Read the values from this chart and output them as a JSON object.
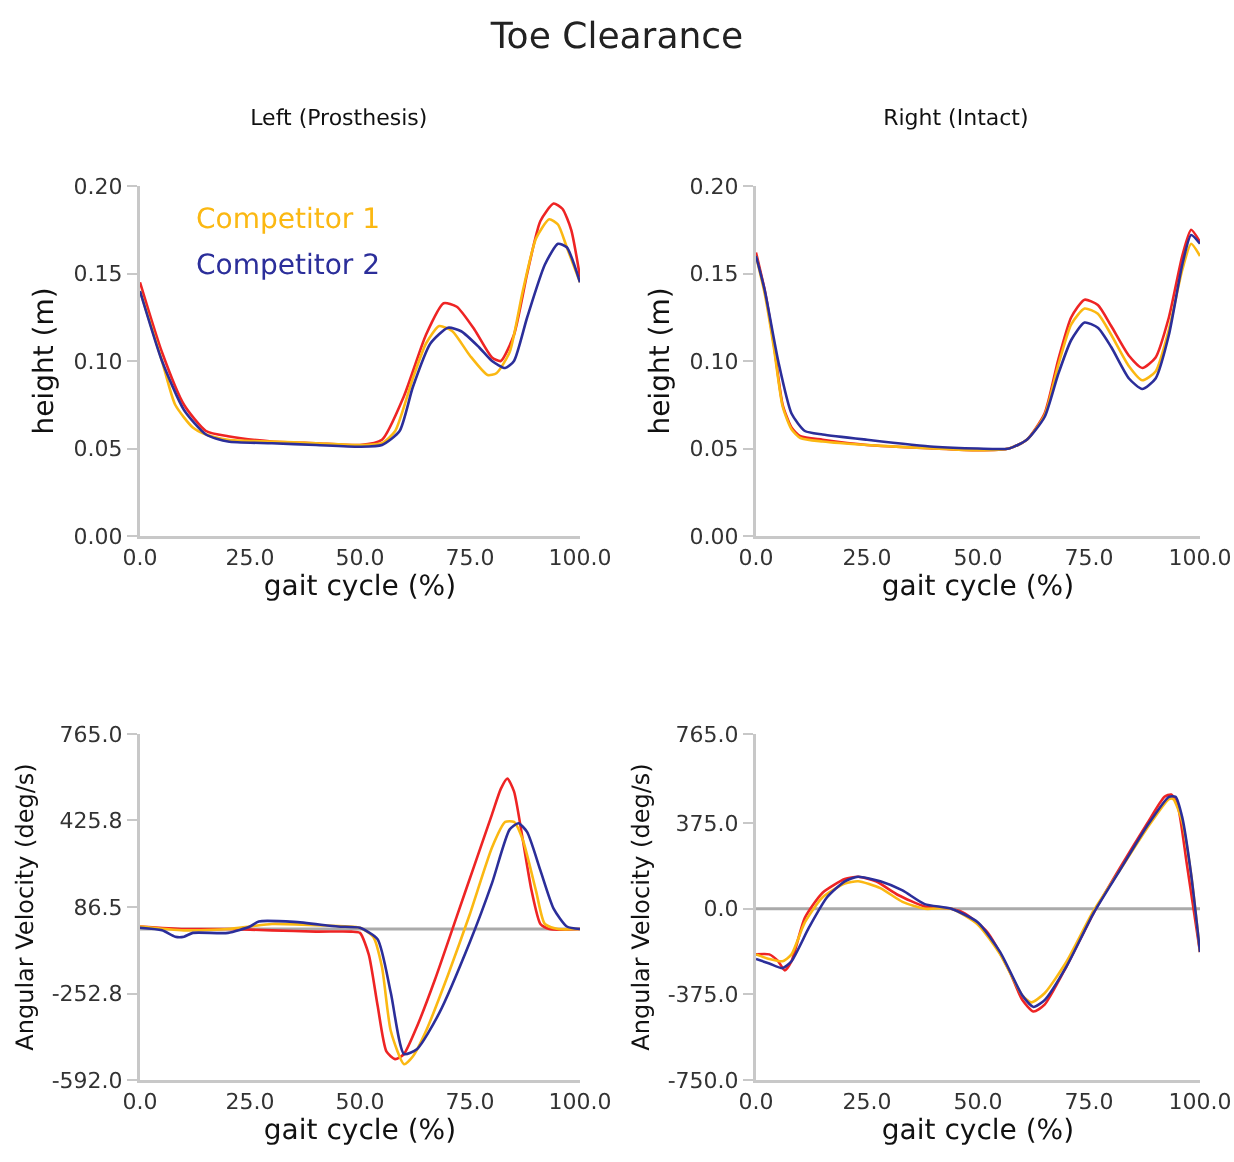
{
  "chart_data": [
    {
      "type": "line",
      "title": "Toe Clearance",
      "subtitle": "Left (Prosthesis)",
      "xlabel": "gait cycle (%)",
      "ylabel": "height (m)",
      "legend": "top left",
      "xlim": [
        0,
        100
      ],
      "ylim": [
        0,
        0.2
      ],
      "xticks": [
        {
          "value": 0,
          "label": "0.0"
        },
        {
          "value": 25,
          "label": "25.0"
        },
        {
          "value": 50,
          "label": "50.0"
        },
        {
          "value": 75,
          "label": "75.0"
        },
        {
          "value": 100,
          "label": "100.0"
        }
      ],
      "yticks": [
        {
          "value": 0,
          "label": "0.00"
        },
        {
          "value": 0.05,
          "label": "0.05"
        },
        {
          "value": 0.1,
          "label": "0.10"
        },
        {
          "value": 0.15,
          "label": "0.15"
        },
        {
          "value": 0.2,
          "label": "0.20"
        }
      ],
      "series": [
        {
          "color": "#ee2424",
          "x": [
            0,
            5,
            10,
            15,
            20,
            30,
            40,
            50,
            55,
            60,
            65,
            69,
            72,
            76,
            80,
            82,
            85,
            88,
            91,
            94,
            96,
            98,
            100
          ],
          "values": [
            0.145,
            0.105,
            0.075,
            0.06,
            0.057,
            0.054,
            0.053,
            0.052,
            0.055,
            0.08,
            0.115,
            0.133,
            0.131,
            0.118,
            0.102,
            0.1,
            0.115,
            0.15,
            0.18,
            0.19,
            0.187,
            0.175,
            0.148
          ]
        },
        {
          "name": "Competitor 1",
          "color": "#fbb812",
          "x": [
            0,
            5,
            8,
            12,
            15,
            20,
            30,
            40,
            50,
            55,
            58,
            62,
            65,
            68,
            71,
            75,
            79,
            81,
            84,
            87,
            90,
            93,
            95,
            97,
            100
          ],
          "values": [
            0.14,
            0.1,
            0.075,
            0.062,
            0.058,
            0.055,
            0.054,
            0.053,
            0.052,
            0.053,
            0.06,
            0.09,
            0.11,
            0.12,
            0.117,
            0.103,
            0.092,
            0.093,
            0.105,
            0.14,
            0.17,
            0.181,
            0.178,
            0.165,
            0.145
          ]
        },
        {
          "name": "Competitor 2",
          "color": "#2b2e9a",
          "x": [
            0,
            5,
            10,
            15,
            20,
            30,
            40,
            50,
            55,
            59,
            62,
            66,
            70,
            73,
            77,
            80,
            83,
            85,
            88,
            92,
            95,
            97,
            100
          ],
          "values": [
            0.14,
            0.1,
            0.072,
            0.058,
            0.054,
            0.053,
            0.052,
            0.051,
            0.052,
            0.06,
            0.085,
            0.11,
            0.119,
            0.117,
            0.108,
            0.1,
            0.096,
            0.1,
            0.125,
            0.155,
            0.167,
            0.165,
            0.145
          ]
        }
      ]
    },
    {
      "type": "line",
      "title": "Right (Intact)",
      "xlabel": "gait cycle (%)",
      "ylabel": "height (m)",
      "xlim": [
        0,
        100
      ],
      "ylim": [
        0,
        0.2
      ],
      "xticks": [
        {
          "value": 0,
          "label": "0.0"
        },
        {
          "value": 25,
          "label": "25.0"
        },
        {
          "value": 50,
          "label": "50.0"
        },
        {
          "value": 75,
          "label": "75.0"
        },
        {
          "value": 100,
          "label": "100.0"
        }
      ],
      "yticks": [
        {
          "value": 0,
          "label": "0.00"
        },
        {
          "value": 0.05,
          "label": "0.05"
        },
        {
          "value": 0.1,
          "label": "0.10"
        },
        {
          "value": 0.15,
          "label": "0.15"
        },
        {
          "value": 0.2,
          "label": "0.20"
        }
      ],
      "series": [
        {
          "color": "#ee2424",
          "x": [
            0,
            2,
            4,
            6,
            8,
            10,
            15,
            25,
            40,
            50,
            57,
            61,
            65,
            68,
            71,
            74,
            77,
            80,
            84,
            87,
            90,
            93,
            96,
            98,
            100
          ],
          "values": [
            0.162,
            0.14,
            0.11,
            0.075,
            0.062,
            0.057,
            0.055,
            0.052,
            0.05,
            0.049,
            0.05,
            0.055,
            0.07,
            0.1,
            0.125,
            0.135,
            0.132,
            0.12,
            0.103,
            0.096,
            0.102,
            0.125,
            0.16,
            0.175,
            0.168
          ]
        },
        {
          "color": "#fbb812",
          "x": [
            0,
            2,
            4,
            6,
            8,
            10,
            15,
            25,
            40,
            50,
            57,
            61,
            65,
            68,
            71,
            74,
            77,
            80,
            84,
            87,
            90,
            93,
            96,
            98,
            100
          ],
          "values": [
            0.16,
            0.138,
            0.108,
            0.074,
            0.061,
            0.056,
            0.054,
            0.052,
            0.05,
            0.049,
            0.05,
            0.055,
            0.069,
            0.097,
            0.121,
            0.13,
            0.127,
            0.115,
            0.097,
            0.089,
            0.094,
            0.118,
            0.152,
            0.167,
            0.16
          ]
        },
        {
          "color": "#2b2e9a",
          "x": [
            0,
            2,
            5,
            8,
            11,
            15,
            25,
            40,
            50,
            57,
            61,
            65,
            68,
            71,
            74,
            77,
            80,
            84,
            87,
            90,
            93,
            96,
            98,
            100
          ],
          "values": [
            0.16,
            0.14,
            0.1,
            0.07,
            0.06,
            0.058,
            0.055,
            0.051,
            0.05,
            0.05,
            0.055,
            0.068,
            0.092,
            0.112,
            0.122,
            0.119,
            0.108,
            0.09,
            0.084,
            0.09,
            0.115,
            0.155,
            0.172,
            0.167
          ]
        }
      ]
    },
    {
      "type": "line",
      "xlabel": "gait cycle (%)",
      "ylabel": "Angular Velocity (deg/s)",
      "xlim": [
        0,
        100
      ],
      "ylim": [
        -592,
        765
      ],
      "xticks": [
        {
          "value": 0,
          "label": "0.0"
        },
        {
          "value": 25,
          "label": "25.0"
        },
        {
          "value": 50,
          "label": "50.0"
        },
        {
          "value": 75,
          "label": "75.0"
        },
        {
          "value": 100,
          "label": "100.0"
        }
      ],
      "yticks": [
        {
          "value": -592,
          "label": "-592.0"
        },
        {
          "value": -252.8,
          "label": "-252.8"
        },
        {
          "value": 86.5,
          "label": "86.5"
        },
        {
          "value": 425.8,
          "label": "425.8"
        },
        {
          "value": 765,
          "label": "765.0"
        }
      ],
      "ref_lines": [
        {
          "axis": "y",
          "value": 0,
          "color": "#aaaaaa"
        }
      ],
      "series": [
        {
          "color": "#ee2424",
          "x": [
            0,
            10,
            20,
            30,
            40,
            48,
            50,
            52,
            54,
            56,
            58,
            60,
            63,
            67,
            72,
            76,
            80,
            82,
            83.5,
            85,
            87,
            89,
            91,
            93,
            100
          ],
          "values": [
            10,
            0,
            0,
            -5,
            -10,
            -10,
            -15,
            -100,
            -300,
            -480,
            -510,
            -490,
            -380,
            -200,
            50,
            250,
            450,
            550,
            590,
            540,
            350,
            150,
            20,
            0,
            0
          ]
        },
        {
          "color": "#fbb812",
          "x": [
            0,
            10,
            20,
            25,
            30,
            40,
            50,
            53,
            55,
            57,
            60,
            62,
            65,
            70,
            75,
            80,
            83,
            85,
            87,
            90,
            92,
            95,
            100
          ],
          "values": [
            10,
            -5,
            0,
            10,
            20,
            15,
            5,
            -30,
            -150,
            -400,
            -530,
            -500,
            -400,
            -180,
            60,
            320,
            420,
            420,
            350,
            150,
            20,
            0,
            0
          ]
        },
        {
          "color": "#2b2e9a",
          "x": [
            0,
            5,
            8,
            10,
            12,
            20,
            25,
            27,
            35,
            45,
            50,
            54,
            57,
            60,
            63,
            68,
            75,
            80,
            84,
            86,
            88,
            91,
            94,
            97,
            100
          ],
          "values": [
            5,
            -5,
            -30,
            -30,
            -15,
            -15,
            10,
            30,
            28,
            10,
            5,
            -40,
            -250,
            -490,
            -470,
            -330,
            -50,
            180,
            390,
            415,
            380,
            230,
            80,
            10,
            0
          ]
        }
      ]
    },
    {
      "type": "line",
      "xlabel": "gait cycle (%)",
      "ylabel": "Angular Velocity (deg/s)",
      "xlim": [
        0,
        100
      ],
      "ylim": [
        -750,
        765
      ],
      "xticks": [
        {
          "value": 0,
          "label": "0.0"
        },
        {
          "value": 25,
          "label": "25.0"
        },
        {
          "value": 50,
          "label": "50.0"
        },
        {
          "value": 75,
          "label": "75.0"
        },
        {
          "value": 100,
          "label": "100.0"
        }
      ],
      "yticks": [
        {
          "value": -750,
          "label": "-750.0"
        },
        {
          "value": -375,
          "label": "-375.0"
        },
        {
          "value": 0,
          "label": "0.0"
        },
        {
          "value": 375,
          "label": "375.0"
        },
        {
          "value": 765,
          "label": "765.0"
        }
      ],
      "ref_lines": [
        {
          "axis": "y",
          "value": 0,
          "color": "#aaaaaa"
        }
      ],
      "series": [
        {
          "color": "#ee2424",
          "x": [
            0,
            3,
            5,
            6.5,
            8,
            11,
            15,
            20,
            23,
            27,
            32,
            38,
            44,
            47,
            52,
            57,
            60,
            62.5,
            65,
            70,
            76,
            82,
            88,
            92,
            93.5,
            95,
            97,
            100
          ],
          "values": [
            -200,
            -200,
            -230,
            -270,
            -230,
            -40,
            70,
            130,
            140,
            120,
            60,
            10,
            0,
            -20,
            -100,
            -270,
            -400,
            -450,
            -420,
            -250,
            -20,
            180,
            370,
            490,
            500,
            450,
            200,
            -190
          ]
        },
        {
          "color": "#fbb812",
          "x": [
            0,
            3,
            6,
            8,
            11,
            15,
            20,
            23,
            28,
            33,
            38,
            44,
            50,
            55,
            60,
            62,
            65,
            70,
            76,
            82,
            88,
            93,
            94,
            96,
            98,
            100
          ],
          "values": [
            -200,
            -220,
            -230,
            -200,
            -60,
            50,
            110,
            120,
            90,
            30,
            0,
            0,
            -70,
            -200,
            -380,
            -410,
            -370,
            -230,
            -10,
            170,
            350,
            480,
            480,
            380,
            150,
            -190
          ]
        },
        {
          "color": "#2b2e9a",
          "x": [
            0,
            3,
            6,
            8,
            12,
            16,
            20,
            23,
            28,
            33,
            38,
            44,
            50,
            55,
            60,
            62.5,
            65,
            70,
            76,
            82,
            88,
            93,
            94.5,
            96,
            98,
            100
          ],
          "values": [
            -220,
            -240,
            -260,
            -230,
            -80,
            50,
            120,
            140,
            120,
            80,
            20,
            0,
            -60,
            -190,
            -380,
            -430,
            -400,
            -250,
            -20,
            170,
            360,
            490,
            490,
            400,
            150,
            -190
          ]
        }
      ]
    }
  ]
}
